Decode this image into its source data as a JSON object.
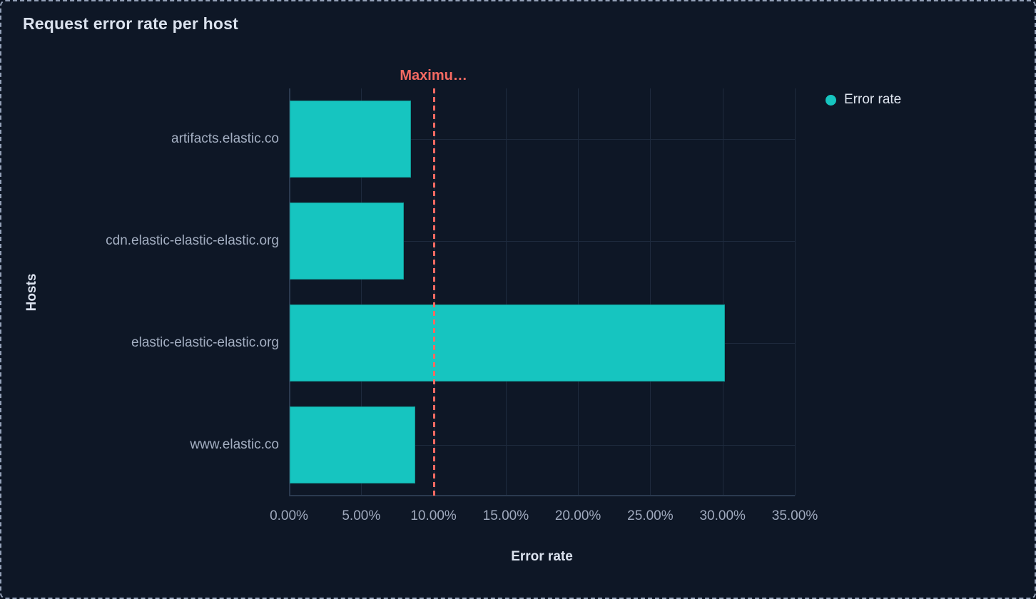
{
  "panel": {
    "title": "Request error rate per host"
  },
  "legend": {
    "items": [
      {
        "label": "Error rate",
        "color": "#16c5c0"
      }
    ]
  },
  "chart_data": {
    "type": "bar",
    "orientation": "horizontal",
    "title": "Request error rate per host",
    "series_name": "Error rate",
    "categories": [
      "artifacts.elastic.co",
      "cdn.elastic-elastic-elastic.org",
      "elastic-elastic-elastic.org",
      "www.elastic.co"
    ],
    "values": [
      8.4,
      7.9,
      30.1,
      8.7
    ],
    "value_unit": "%",
    "xlabel": "Error rate",
    "ylabel": "Hosts",
    "xlim": [
      0,
      35
    ],
    "x_tick_values": [
      0,
      5,
      10,
      15,
      20,
      25,
      30,
      35
    ],
    "x_tick_labels": [
      "0.00%",
      "5.00%",
      "10.00%",
      "15.00%",
      "20.00%",
      "25.00%",
      "30.00%",
      "35.00%"
    ],
    "grid": true,
    "legend_position": "top-right",
    "bar_color": "#16c5c0",
    "threshold": {
      "label": "Maximu…",
      "value": 10,
      "color": "#f56a62",
      "style": "dashed"
    }
  },
  "colors": {
    "background": "#0e1726",
    "panel_border": "#94a1b8",
    "gridline": "#1e2a3d",
    "axis_line": "#2b3a4f",
    "bar": "#16c5c0",
    "threshold": "#f56a62",
    "title_text": "#dbe2ee",
    "label_text": "#a4afc2"
  }
}
